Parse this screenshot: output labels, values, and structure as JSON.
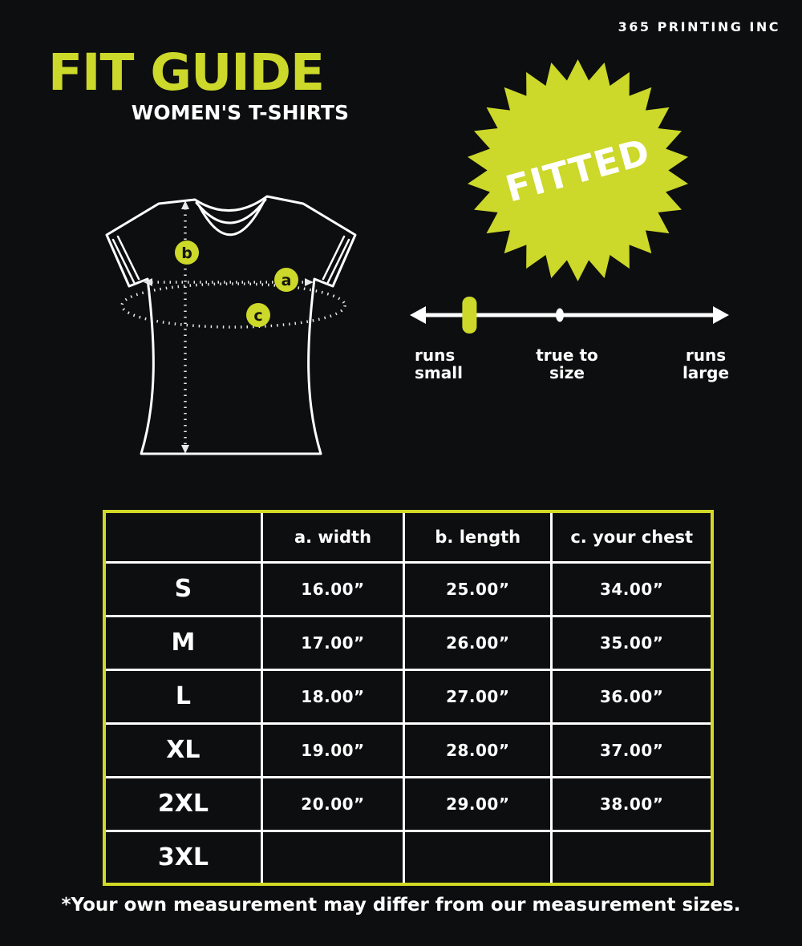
{
  "brand": "365 PRINTING INC",
  "header": {
    "title": "FIT GUIDE",
    "subtitle": "WOMEN'S T-SHIRTS"
  },
  "badge": {
    "label": "FITTED"
  },
  "diagram": {
    "markers": [
      {
        "letter": "b",
        "meaning": "length"
      },
      {
        "letter": "a",
        "meaning": "width"
      },
      {
        "letter": "c",
        "meaning": "your chest"
      }
    ]
  },
  "scale": {
    "marker_position_pct": 18.7,
    "left_label_line1": "runs",
    "left_label_line2": "small",
    "center_label_line1": "true to",
    "center_label_line2": "size",
    "right_label_line1": "runs",
    "right_label_line2": "large"
  },
  "size_chart": {
    "columns": [
      "",
      "a. width",
      "b. length",
      "c. your chest"
    ],
    "rows": [
      {
        "size": "S",
        "width": "16.00”",
        "length": "25.00”",
        "chest": "34.00”"
      },
      {
        "size": "M",
        "width": "17.00”",
        "length": "26.00”",
        "chest": "35.00”"
      },
      {
        "size": "L",
        "width": "18.00”",
        "length": "27.00”",
        "chest": "36.00”"
      },
      {
        "size": "XL",
        "width": "19.00”",
        "length": "28.00”",
        "chest": "37.00”"
      },
      {
        "size": "2XL",
        "width": "20.00”",
        "length": "29.00”",
        "chest": "38.00”"
      },
      {
        "size": "3XL",
        "width": "",
        "length": "",
        "chest": ""
      }
    ]
  },
  "footnote": "*Your own measurement may differ from our measurement sizes.",
  "colors": {
    "accent": "#ccd82a",
    "table_border": "#d2d826",
    "background": "#0d0e0f",
    "text": "#ffffff"
  }
}
